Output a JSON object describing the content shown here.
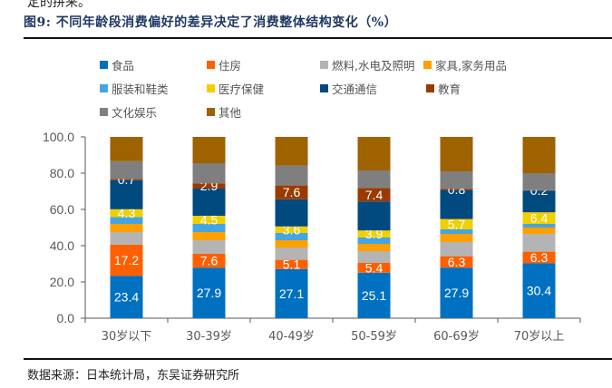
{
  "page": {
    "top_fragment": "定的拼来。",
    "figure_title": "图9:  不同年龄段消费偏好的差异决定了消费整体结构变化（%）",
    "source": "数据来源：日本统计局，东吴证券研究所"
  },
  "chart_data": {
    "type": "bar",
    "stacked": true,
    "title": "图9:  不同年龄段消费偏好的差异决定了消费整体结构变化（%）",
    "xlabel": "",
    "ylabel": "",
    "ylim": [
      0,
      100
    ],
    "yticks": [
      "0.0",
      "20.0",
      "40.0",
      "60.0",
      "80.0",
      "100.0"
    ],
    "ytick_values": [
      0,
      20,
      40,
      60,
      80,
      100
    ],
    "grid": false,
    "legend_position": "top",
    "categories": [
      "30岁以下",
      "30-39岁",
      "40-49岁",
      "50-59岁",
      "60-69岁",
      "70岁以上"
    ],
    "series": [
      {
        "name": "食品",
        "color": "#0070c0",
        "values": [
          23.4,
          27.9,
          27.1,
          25.1,
          27.9,
          30.4
        ],
        "labeled": true
      },
      {
        "name": "住房",
        "color": "#ff5f00",
        "values": [
          17.2,
          7.6,
          5.1,
          5.4,
          6.3,
          6.3
        ],
        "labeled": true
      },
      {
        "name": "燃料,水电及照明",
        "color": "#b4b4b4",
        "values": [
          6.9,
          7.5,
          6.8,
          6.5,
          7.8,
          9.8
        ],
        "labeled": false
      },
      {
        "name": "家具,家务用品",
        "color": "#ffa000",
        "values": [
          4.5,
          4.5,
          4.0,
          4.0,
          4.5,
          3.5
        ],
        "labeled": false
      },
      {
        "name": "服装和鞋类",
        "color": "#45a5e0",
        "values": [
          3.8,
          4.5,
          4.0,
          3.5,
          2.5,
          2.0
        ],
        "labeled": false
      },
      {
        "name": "医疗保健",
        "color": "#f0d000",
        "values": [
          4.3,
          4.5,
          3.6,
          3.9,
          5.7,
          6.4
        ],
        "labeled": true
      },
      {
        "name": "交通通信",
        "color": "#004a80",
        "values": [
          16.0,
          15.0,
          15.0,
          16.0,
          15.8,
          12.0
        ],
        "labeled": false
      },
      {
        "name": "教育",
        "color": "#9a3a00",
        "values": [
          0.7,
          2.9,
          7.6,
          7.4,
          0.8,
          0.2
        ],
        "labeled": true
      },
      {
        "name": "文化娱乐",
        "color": "#7f7f7f",
        "values": [
          9.8,
          11.1,
          11.0,
          9.7,
          9.7,
          9.4
        ],
        "labeled": false
      },
      {
        "name": "其他",
        "color": "#9e6200",
        "values": [
          13.4,
          14.5,
          15.8,
          18.5,
          19.0,
          20.0
        ],
        "labeled": false
      }
    ]
  }
}
